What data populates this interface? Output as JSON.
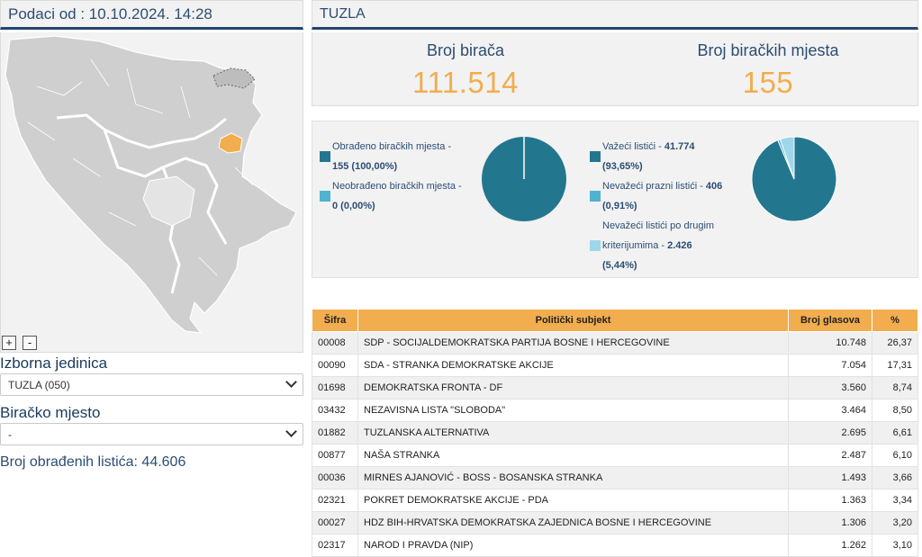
{
  "header": {
    "data_since": "Podaci od : 10.10.2024. 14:28"
  },
  "map": {
    "zoom_in": "+",
    "zoom_out": "-",
    "highlight_color": "#f2ad4e"
  },
  "electoral_unit": {
    "label": "Izborna jedinica",
    "selected": "TUZLA (050)"
  },
  "polling_station": {
    "label": "Biračko mjesto",
    "selected": "-"
  },
  "processed_ballots": "Broj obrađenih listića: 44.606",
  "region": {
    "title": "TUZLA"
  },
  "stats": {
    "voters_label": "Broj birača",
    "voters_value": "111.514",
    "stations_label": "Broj biračkih mjesta",
    "stations_value": "155"
  },
  "chart_data": [
    {
      "type": "pie",
      "labels": [
        "Obrađeno biračkih mjesta",
        "Neobrađeno biračkih mjesta"
      ],
      "values": [
        155,
        0
      ],
      "percent": [
        100.0,
        0.0
      ],
      "colors": [
        "#22778f",
        "#4fb3cf"
      ]
    },
    {
      "type": "pie",
      "labels": [
        "Važeći listići",
        "Nevažeći prazni listići",
        "Nevažeći listići po drugim kriterijumima"
      ],
      "values": [
        41774,
        406,
        2426
      ],
      "percent": [
        93.65,
        0.91,
        5.44
      ],
      "colors": [
        "#22778f",
        "#4fb3cf",
        "#9fd6ea"
      ]
    }
  ],
  "legend1": {
    "a1": "Obrađeno biračkih mjesta -",
    "a2": "155 (100,00%)",
    "b1": "Neobrađeno biračkih mjesta -",
    "b2": "0 (0,00%)"
  },
  "legend2": {
    "a1_text": "Važeći listići - ",
    "a1_num": "41.774",
    "a2": "(93,65%)",
    "b1_text": "Nevažeći prazni listići - ",
    "b1_num": "406",
    "b2": "(0,91%)",
    "c1": "Nevažeći listići po drugim",
    "c2_text": "kriterijumima - ",
    "c2_num": "2.426",
    "c3": "(5,44%)"
  },
  "table": {
    "headers": [
      "Šifra",
      "Politički subjekt",
      "Broj glasova",
      "%"
    ],
    "rows": [
      [
        "00008",
        "SDP - SOCIJALDEMOKRATSKA PARTIJA BOSNE I HERCEGOVINE",
        "10.748",
        "26,37"
      ],
      [
        "00090",
        "SDA - STRANKA DEMOKRATSKE AKCIJE",
        "7.054",
        "17,31"
      ],
      [
        "01698",
        "DEMOKRATSKA FRONTA - DF",
        "3.560",
        "8,74"
      ],
      [
        "03432",
        "NEZAVISNA LISTA \"SLOBODA\"",
        "3.464",
        "8,50"
      ],
      [
        "01882",
        "TUZLANSKA ALTERNATIVA",
        "2.695",
        "6,61"
      ],
      [
        "00877",
        "NAŠA STRANKA",
        "2.487",
        "6,10"
      ],
      [
        "00036",
        "MIRNES AJANOVIĆ - BOSS - BOSANSKA STRANKA",
        "1.493",
        "3,66"
      ],
      [
        "02321",
        "POKRET DEMOKRATSKE AKCIJE - PDA",
        "1.363",
        "3,34"
      ],
      [
        "00027",
        "HDZ BIH-HRVATSKA DEMOKRATSKA ZAJEDNICA BOSNE I HERCEGOVINE",
        "1.306",
        "3,20"
      ],
      [
        "02317",
        "NAROD I PRAVDA (NIP)",
        "1.262",
        "3,10"
      ]
    ]
  }
}
